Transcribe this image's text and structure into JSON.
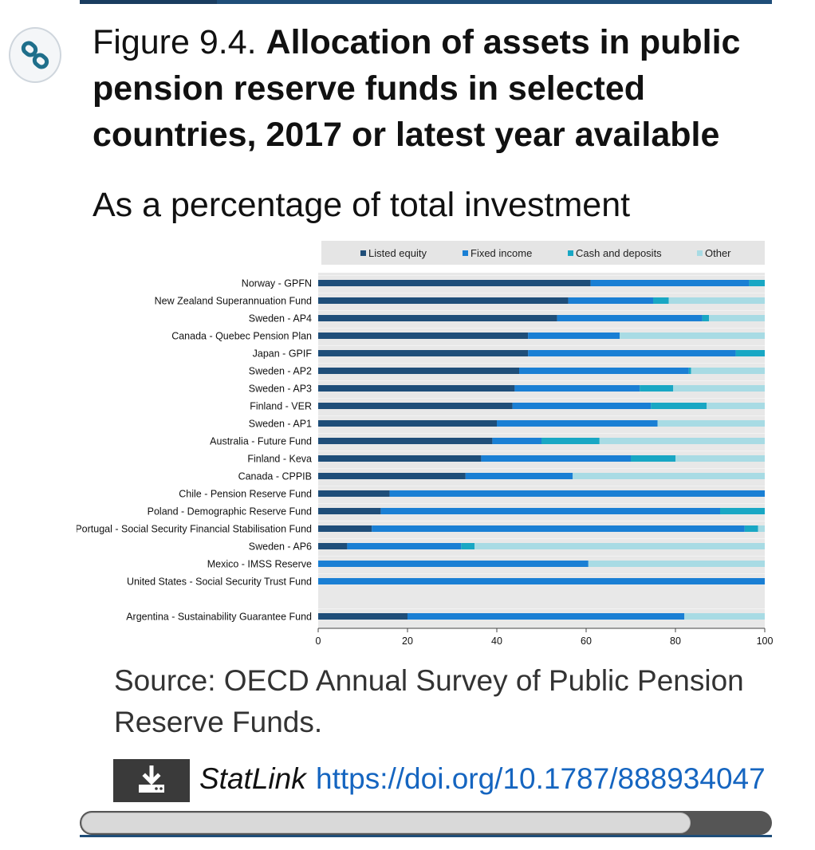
{
  "figure": {
    "number": "Figure 9.4.",
    "title": "Allocation of assets in public pension reserve funds in selected countries, 2017 or latest year available",
    "subtitle": "As a percentage of total investment"
  },
  "source_text": "Source: OECD Annual Survey of Public Pension Reserve Funds.",
  "statlink": {
    "label": "StatLink",
    "url": "https://doi.org/10.1787/888934047"
  },
  "icons": {
    "link": "link-icon",
    "download": "download-icon"
  },
  "colors": {
    "listed_equity": "#1f4e79",
    "fixed_income": "#1a7fd4",
    "cash_deposits": "#19a7c4",
    "other": "#a8dbe4",
    "plot_bg": "#e8e8e8",
    "legend_bg": "#e5e5e5"
  },
  "chart_data": {
    "type": "bar",
    "orientation": "horizontal",
    "stacked": true,
    "title": "",
    "xlabel": "",
    "ylabel": "",
    "xlim": [
      0,
      100
    ],
    "xticks": [
      0,
      20,
      40,
      60,
      80,
      100
    ],
    "legend_position": "top",
    "grid": false,
    "categories": [
      "Norway - GPFN",
      "New Zealand Superannuation Fund",
      "Sweden - AP4",
      "Canada - Quebec Pension Plan",
      "Japan - GPIF",
      "Sweden - AP2",
      "Sweden - AP3",
      "Finland - VER",
      "Sweden - AP1",
      "Australia - Future Fund",
      "Finland - Keva",
      "Canada - CPPIB",
      "Chile - Pension Reserve Fund",
      "Poland - Demographic Reserve Fund",
      "Portugal - Social Security Financial Stabilisation Fund",
      "Sweden - AP6",
      "Mexico - IMSS Reserve",
      "United States - Social Security Trust Fund",
      "Argentina - Sustainability Guarantee Fund"
    ],
    "gap_before_last": true,
    "series": [
      {
        "name": "Listed equity",
        "values": [
          61.0,
          56.0,
          53.5,
          47.0,
          47.0,
          45.0,
          44.0,
          43.5,
          40.0,
          39.0,
          36.5,
          33.0,
          16.0,
          14.0,
          12.0,
          6.5,
          0,
          0,
          20.0
        ]
      },
      {
        "name": "Fixed income",
        "values": [
          35.5,
          19.0,
          32.5,
          20.5,
          46.5,
          38.0,
          28.0,
          31.0,
          36.0,
          11.0,
          33.5,
          24.0,
          84.0,
          76.0,
          83.5,
          25.5,
          60.5,
          100,
          62.0
        ]
      },
      {
        "name": "Cash and deposits",
        "values": [
          3.5,
          3.5,
          1.5,
          0,
          6.5,
          0.5,
          7.5,
          12.5,
          0,
          13.0,
          10.0,
          0,
          0,
          10.0,
          3.0,
          3.0,
          0,
          0,
          0
        ]
      },
      {
        "name": "Other",
        "values": [
          0,
          21.5,
          12.5,
          32.5,
          0,
          16.5,
          20.5,
          13.0,
          24.0,
          37.0,
          20.0,
          43.0,
          0,
          0,
          1.5,
          65.0,
          39.5,
          0,
          18.0
        ]
      }
    ]
  }
}
